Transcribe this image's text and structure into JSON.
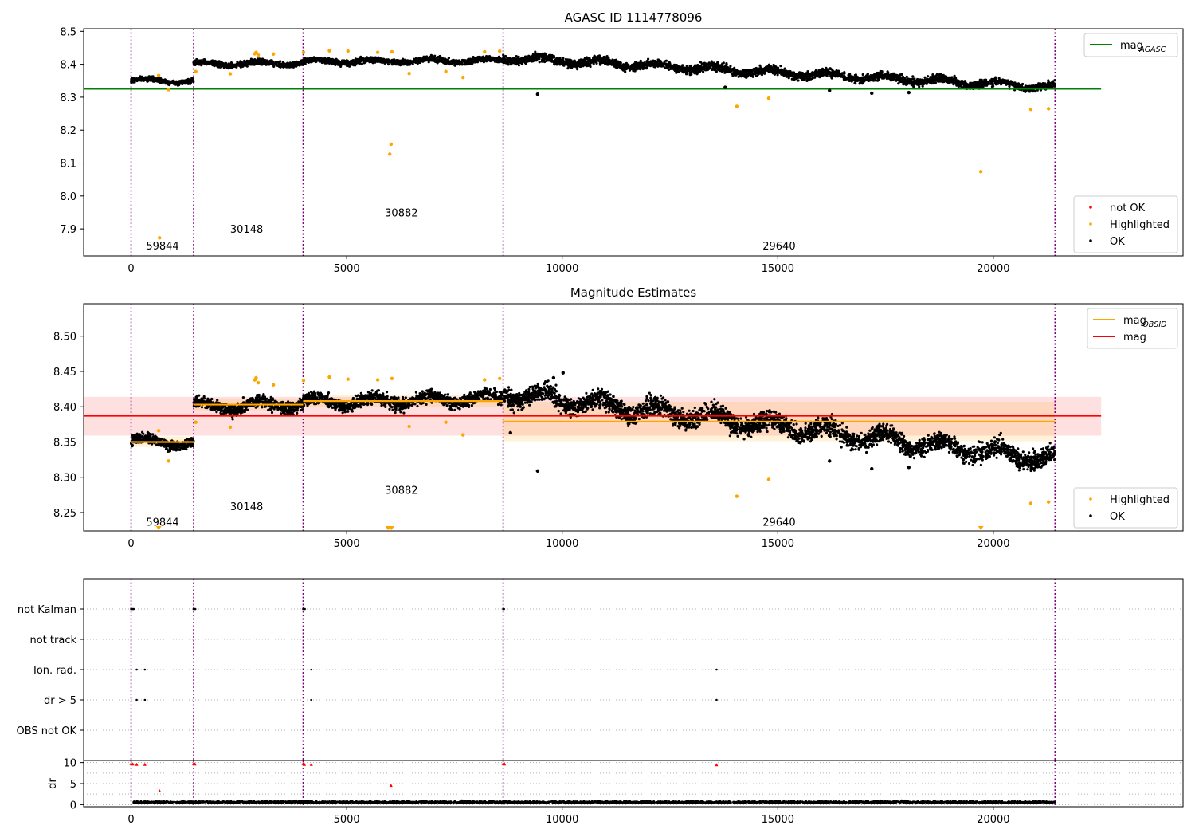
{
  "chart_data": [
    {
      "type": "scatter",
      "title": "AGASC ID 1114778096",
      "xlim": [
        -1100,
        24400
      ],
      "ylim": [
        7.818,
        8.508
      ],
      "x_ticks": [
        0,
        5000,
        10000,
        15000,
        20000
      ],
      "x_tick_labels": [
        "0",
        "5000",
        "10000",
        "15000",
        "20000"
      ],
      "y_ticks": [
        7.9,
        8.0,
        8.1,
        8.2,
        8.3,
        8.4,
        8.5
      ],
      "y_tick_labels": [
        "7.9",
        "8.0",
        "8.1",
        "8.2",
        "8.3",
        "8.4",
        "8.5"
      ],
      "vlines": [
        0,
        1450,
        3990,
        8630,
        21430
      ],
      "obsid_labels": [
        {
          "text": "59844",
          "x": 730,
          "y": 7.85
        },
        {
          "text": "30148",
          "x": 2680,
          "y": 7.9
        },
        {
          "text": "30882",
          "x": 6270,
          "y": 7.95
        },
        {
          "text": "29640",
          "x": 15030,
          "y": 7.85
        }
      ],
      "hlines": [
        {
          "name": "mag_AGASC",
          "y": 8.325,
          "x0": -1100,
          "x1": 22500,
          "color": "#008000"
        }
      ],
      "ok_trend": [
        {
          "x0": 0,
          "x1": 1450,
          "y0": 8.352,
          "y1": 8.348,
          "spread": 0.014
        },
        {
          "x0": 1450,
          "x1": 3990,
          "y0": 8.4,
          "y1": 8.404,
          "spread": 0.016
        },
        {
          "x0": 3990,
          "x1": 8630,
          "y0": 8.408,
          "y1": 8.412,
          "spread": 0.016
        },
        {
          "x0": 8630,
          "x1": 21430,
          "y0": 8.42,
          "y1": 8.33,
          "spread": 0.024
        }
      ],
      "series": [
        {
          "name": "Highlighted",
          "color": "#ffa500",
          "x": [
            2870,
            2900,
            2950,
            3300,
            4000,
            4600,
            5030,
            5720,
            6000,
            6030,
            6050,
            6450,
            7300,
            7700,
            8200,
            8550,
            640,
            870,
            1500,
            2300,
            14050,
            14790,
            19710,
            20870,
            21280,
            660
          ],
          "y": [
            8.432,
            8.436,
            8.428,
            8.431,
            8.436,
            8.441,
            8.44,
            8.436,
            8.127,
            8.157,
            8.438,
            8.372,
            8.378,
            8.36,
            8.438,
            8.44,
            8.366,
            8.323,
            8.378,
            8.371,
            8.272,
            8.297,
            8.074,
            8.263,
            8.265,
            7.873
          ]
        },
        {
          "name": "OK",
          "color": "#000000",
          "x": [
            9430,
            16200,
            17180,
            18040,
            13780
          ],
          "y": [
            8.309,
            8.32,
            8.312,
            8.314,
            8.33
          ]
        }
      ],
      "legends": [
        {
          "placement": "upper-right",
          "entries": [
            {
              "label": "mag",
              "sub": "AGASC",
              "kind": "line",
              "color": "#008000"
            }
          ]
        },
        {
          "placement": "lower-right",
          "entries": [
            {
              "label": "not OK",
              "kind": "dot",
              "color": "#ff0000"
            },
            {
              "label": "Highlighted",
              "kind": "dot",
              "color": "#ffa500"
            },
            {
              "label": "OK",
              "kind": "dot",
              "color": "#000000"
            }
          ]
        }
      ],
      "grid": false
    },
    {
      "type": "scatter",
      "title": "Magnitude Estimates",
      "xlim": [
        -1100,
        24400
      ],
      "ylim": [
        8.224,
        8.546
      ],
      "x_ticks": [
        0,
        5000,
        10000,
        15000,
        20000
      ],
      "x_tick_labels": [
        "0",
        "5000",
        "10000",
        "15000",
        "20000"
      ],
      "y_ticks": [
        8.25,
        8.3,
        8.35,
        8.4,
        8.45,
        8.5
      ],
      "y_tick_labels": [
        "8.25",
        "8.30",
        "8.35",
        "8.40",
        "8.45",
        "8.50"
      ],
      "vlines": [
        0,
        1450,
        3990,
        8630,
        21430
      ],
      "obsid_labels": [
        {
          "text": "59844",
          "x": 730,
          "y": 8.237
        },
        {
          "text": "30148",
          "x": 2680,
          "y": 8.259
        },
        {
          "text": "30882",
          "x": 6270,
          "y": 8.282
        },
        {
          "text": "29640",
          "x": 15030,
          "y": 8.237
        }
      ],
      "mag": {
        "value": 8.387,
        "band": [
          8.359,
          8.414
        ],
        "x0": -1100,
        "x1": 22500,
        "color": "#ff0000"
      },
      "mag_obsid": [
        {
          "x0": 0,
          "x1": 1450,
          "value": 8.35,
          "band": [
            8.343,
            8.358
          ]
        },
        {
          "x0": 1450,
          "x1": 3990,
          "value": 8.403,
          "band": [
            8.395,
            8.411
          ]
        },
        {
          "x0": 3990,
          "x1": 8630,
          "value": 8.408,
          "band": [
            8.4,
            8.416
          ]
        },
        {
          "x0": 8630,
          "x1": 21430,
          "value": 8.379,
          "band": [
            8.351,
            8.407
          ]
        }
      ],
      "ok_trend": [
        {
          "x0": 0,
          "x1": 1450,
          "y0": 8.352,
          "y1": 8.348,
          "spread": 0.014
        },
        {
          "x0": 1450,
          "x1": 3990,
          "y0": 8.4,
          "y1": 8.404,
          "spread": 0.018
        },
        {
          "x0": 3990,
          "x1": 8630,
          "y0": 8.406,
          "y1": 8.412,
          "spread": 0.018
        },
        {
          "x0": 8630,
          "x1": 21430,
          "y0": 8.42,
          "y1": 8.325,
          "spread": 0.026
        }
      ],
      "series": [
        {
          "name": "Highlighted",
          "color": "#ffa500",
          "x": [
            2870,
            2900,
            2950,
            3300,
            4000,
            4600,
            5030,
            5720,
            6050,
            6450,
            7300,
            7700,
            8200,
            8550,
            640,
            870,
            1500,
            2300,
            14050,
            14790,
            20870,
            21280
          ],
          "y": [
            8.438,
            8.441,
            8.434,
            8.431,
            8.437,
            8.442,
            8.439,
            8.438,
            8.44,
            8.372,
            8.378,
            8.36,
            8.438,
            8.44,
            8.366,
            8.323,
            8.378,
            8.371,
            8.273,
            8.297,
            8.263,
            8.265
          ]
        },
        {
          "name": "OK",
          "color": "#000000",
          "x": [
            9430,
            16200,
            17180,
            18040,
            8800,
            10020,
            9800
          ],
          "y": [
            8.309,
            8.323,
            8.312,
            8.314,
            8.363,
            8.448,
            8.441
          ]
        }
      ],
      "clipped_markers": [
        640,
        5960,
        6000,
        6040,
        19710
      ],
      "legends": [
        {
          "placement": "upper-right",
          "entries": [
            {
              "label": "mag",
              "sub": "OBSID",
              "kind": "line",
              "color": "#ffa500"
            },
            {
              "label": "mag",
              "kind": "line",
              "color": "#ff0000"
            }
          ]
        },
        {
          "placement": "lower-right",
          "entries": [
            {
              "label": "Highlighted",
              "kind": "dot",
              "color": "#ffa500"
            },
            {
              "label": "OK",
              "kind": "dot",
              "color": "#000000"
            }
          ]
        }
      ],
      "grid": false
    },
    {
      "type": "scatter",
      "title": "",
      "xlim": [
        -1100,
        24400
      ],
      "x_ticks": [
        0,
        5000,
        10000,
        15000,
        20000
      ],
      "x_tick_labels": [
        "0",
        "5000",
        "10000",
        "15000",
        "20000"
      ],
      "vlines": [
        0,
        1450,
        3990,
        8630,
        21430
      ],
      "flag_rows": [
        "not Kalman",
        "not track",
        "Ion. rad.",
        "dr > 5",
        "OBS not OK"
      ],
      "flag_points": [
        {
          "row": "not Kalman",
          "x": [
            0,
            20,
            40,
            60,
            1450,
            1470,
            1490,
            3990,
            4010,
            4030,
            8630,
            8650
          ]
        },
        {
          "row": "Ion. rad.",
          "x": [
            130,
            320,
            4180,
            13580
          ]
        },
        {
          "row": "dr > 5",
          "x": [
            130,
            320,
            4180,
            13580
          ]
        }
      ],
      "dr": {
        "ylabel": "dr",
        "ylim": [
          -0.5,
          10.5
        ],
        "y_ticks": [
          0,
          5,
          10
        ],
        "y_tick_labels": [
          "0",
          "5",
          "10"
        ],
        "minor_grid": [
          2.5,
          7.5
        ],
        "ok_segments": [
          [
            60,
            1450
          ],
          [
            1450,
            3990
          ],
          [
            3990,
            8630
          ],
          [
            8630,
            21430
          ]
        ],
        "ok_level": 0.45,
        "not_ok": {
          "x": [
            0,
            40,
            130,
            320,
            660,
            1450,
            1480,
            3990,
            4020,
            4180,
            6030,
            8630,
            8660,
            13580
          ],
          "y": [
            9.8,
            9.7,
            9.6,
            9.6,
            3.3,
            9.8,
            9.7,
            9.8,
            9.6,
            9.6,
            4.6,
            9.8,
            9.7,
            9.5
          ]
        }
      }
    }
  ]
}
